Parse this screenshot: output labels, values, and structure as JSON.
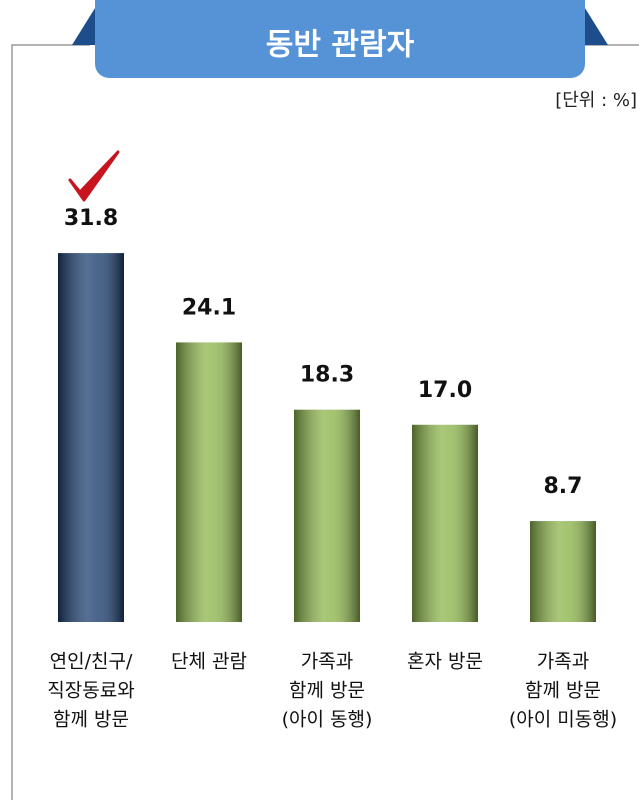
{
  "chart_data": {
    "type": "bar",
    "title": "동반 관람자",
    "unit_label": "[단위 : %]",
    "categories": [
      [
        "연인/친구/",
        "직장동료와",
        "함께 방문"
      ],
      [
        "단체 관람"
      ],
      [
        "가족과",
        "함께 방문",
        "(아이 동행)"
      ],
      [
        "혼자 방문"
      ],
      [
        "가족과",
        "함께 방문",
        "(아이 미동행)"
      ]
    ],
    "values": [
      31.8,
      24.1,
      18.3,
      17.0,
      8.7
    ],
    "value_labels": [
      "31.8",
      "24.1",
      "18.3",
      "17.0",
      "8.7"
    ],
    "colors": [
      "#1d3f6f",
      "#8db54c",
      "#8db54c",
      "#8db54c",
      "#8db54c"
    ]
  }
}
